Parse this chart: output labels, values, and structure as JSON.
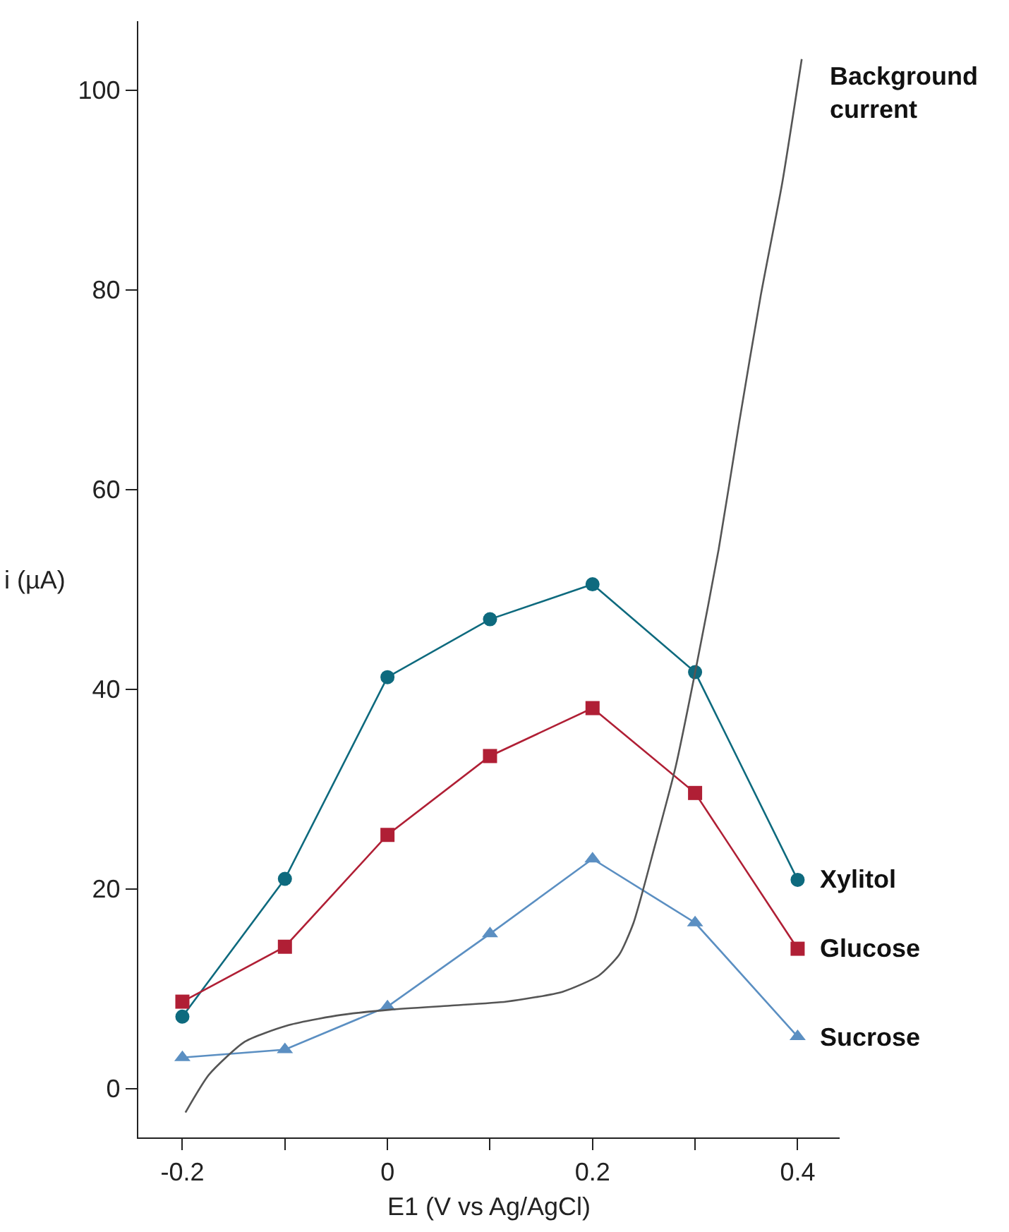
{
  "chart_data": {
    "type": "line",
    "xlabel": "E1 (V vs Ag/AgCl)",
    "ylabel": "i (µA)",
    "x": [
      -0.2,
      -0.1,
      0,
      0.1,
      0.2,
      0.3,
      0.4
    ],
    "xlim": [
      -0.243,
      0.441
    ],
    "xticks": [
      -0.2,
      {
        "value": -0.1,
        "label": null
      },
      0,
      {
        "value": 0.1,
        "label": null
      },
      0.2,
      {
        "value": 0.3,
        "label": null
      },
      0.4
    ],
    "ylim": [
      -4.9,
      106.9
    ],
    "yticks": [
      0,
      20,
      40,
      60,
      80,
      100
    ],
    "legend": false,
    "line_style": "solid",
    "series": [
      {
        "name": "Xylitol",
        "color": "#0e6a7e",
        "marker": "circle",
        "values": [
          7.2,
          21.0,
          41.2,
          47.0,
          50.5,
          41.7,
          20.9
        ]
      },
      {
        "name": "Glucose",
        "color": "#b01f35",
        "marker": "square",
        "values": [
          8.7,
          14.2,
          25.4,
          33.3,
          38.1,
          29.6,
          14.0
        ]
      },
      {
        "name": "Sucrose",
        "color": "#5b8fc2",
        "marker": "triangle",
        "values": [
          3.1,
          3.9,
          8.2,
          15.5,
          23.0,
          16.6,
          5.2
        ]
      },
      {
        "name": "Background current",
        "color": "#555555",
        "marker": "none",
        "x": [
          -0.197,
          -0.174,
          -0.139,
          -0.098,
          -0.05,
          0.003,
          0.061,
          0.116,
          0.171,
          0.206,
          0.226,
          0.24,
          0.261,
          0.281,
          0.302,
          0.323,
          0.343,
          0.364,
          0.385,
          0.404
        ],
        "values": [
          -2.4,
          1.4,
          4.7,
          6.3,
          7.3,
          7.9,
          8.3,
          8.7,
          9.7,
          11.3,
          13.4,
          16.6,
          24.4,
          32.2,
          42.7,
          54.0,
          66.7,
          79.4,
          90.7,
          103.1
        ]
      }
    ]
  }
}
